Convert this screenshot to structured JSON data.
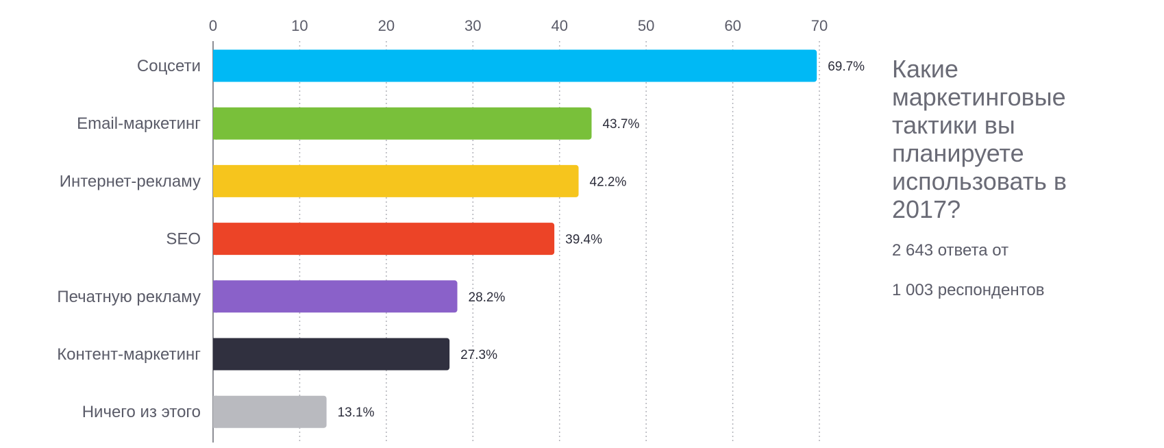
{
  "chart_data": {
    "type": "bar",
    "orientation": "horizontal",
    "categories": [
      "Соцсети",
      "Email-маркетинг",
      "Интернет-рекламу",
      "SEO",
      "Печатную рекламу",
      "Контент-маркетинг",
      "Ничего из этого"
    ],
    "values": [
      69.7,
      43.7,
      42.2,
      39.4,
      28.2,
      27.3,
      13.1
    ],
    "value_labels": [
      "69.7%",
      "43.7%",
      "42.2%",
      "39.4%",
      "28.2%",
      "27.3%",
      "13.1%"
    ],
    "colors": [
      "#00b9f5",
      "#79c03a",
      "#f6c51d",
      "#ec4427",
      "#8a61c9",
      "#30303f",
      "#b9babf"
    ],
    "xlim": [
      0,
      70
    ],
    "xticks": [
      0,
      10,
      20,
      30,
      40,
      50,
      60,
      70
    ],
    "xtick_labels": [
      "0",
      "10",
      "20",
      "30",
      "40",
      "50",
      "60",
      "70"
    ],
    "x_axis_position": "top",
    "grid": "vertical dotted",
    "title": "",
    "xlabel": "",
    "ylabel": ""
  },
  "panel": {
    "question": "Какие маркетинговые тактики вы планируете использовать в 2017?",
    "answers": "2 643 ответа от",
    "respondents": "1 003 респондентов"
  },
  "colors": {
    "axis": "#8c8d94",
    "grid": "#b0b1b8",
    "text": "#5a5b68"
  }
}
